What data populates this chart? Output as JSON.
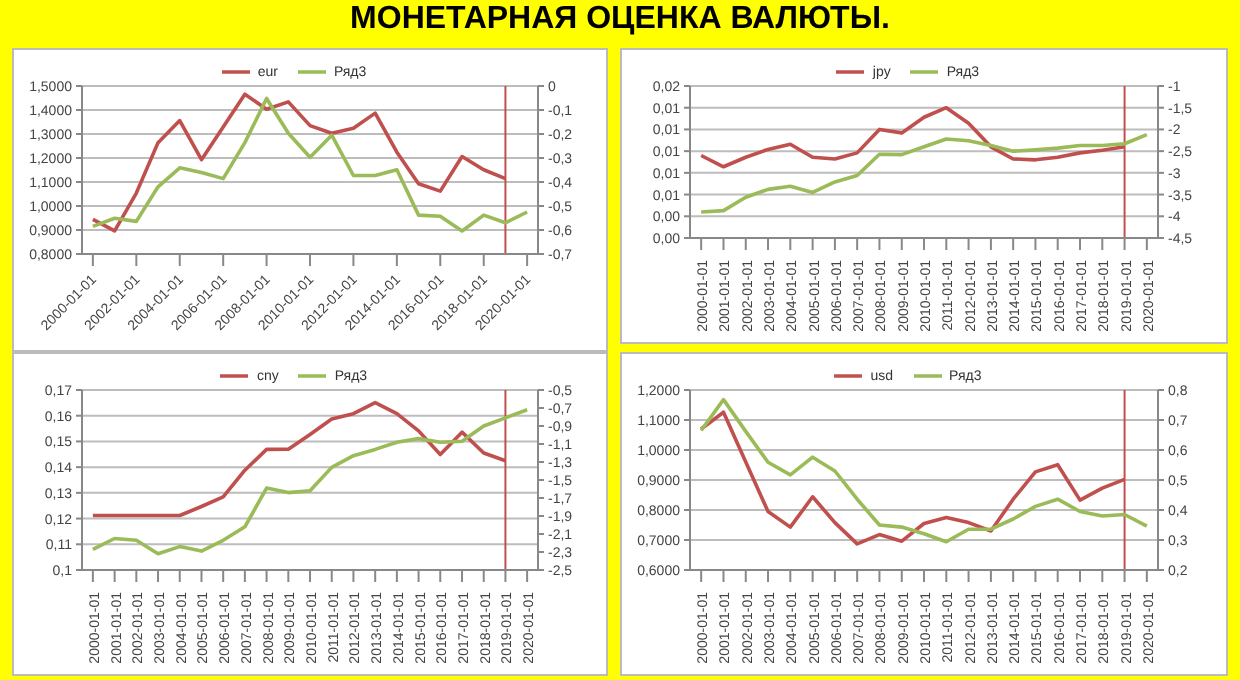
{
  "chart_data": [
    {
      "type": "line",
      "title": "МОНЕТАРНАЯ ОЦЕНКА ВАЛЮТЫ.",
      "x": [
        "2000-01-01",
        "2001-01-01",
        "2002-01-01",
        "2003-01-01",
        "2004-01-01",
        "2005-01-01",
        "2006-01-01",
        "2007-01-01",
        "2008-01-01",
        "2009-01-01",
        "2010-01-01",
        "2011-01-01",
        "2012-01-01",
        "2013-01-01",
        "2014-01-01",
        "2015-01-01",
        "2016-01-01",
        "2017-01-01",
        "2018-01-01",
        "2019-01-01",
        "2020-01-01"
      ],
      "series": [
        {
          "name": "eur",
          "color": "#c0504d",
          "values": [
            0.944,
            0.896,
            1.054,
            1.264,
            1.356,
            1.193,
            1.329,
            1.466,
            1.403,
            1.434,
            1.335,
            1.303,
            1.324,
            1.387,
            1.224,
            1.093,
            1.062,
            1.206,
            1.151,
            1.114,
            null
          ]
        },
        {
          "name": "Ряд3",
          "color": "#9bbb59",
          "axis": "y2",
          "values": [
            -0.585,
            -0.551,
            -0.564,
            -0.42,
            -0.341,
            -0.36,
            -0.386,
            -0.236,
            -0.052,
            -0.197,
            -0.297,
            -0.205,
            -0.373,
            -0.373,
            -0.349,
            -0.538,
            -0.543,
            -0.604,
            -0.538,
            -0.57,
            -0.525
          ]
        }
      ],
      "xlim": [
        "1999-07-02",
        "2020-07-02"
      ],
      "xticks": [
        "2000-01-01",
        "2002-01-01",
        "2004-01-01",
        "2006-01-01",
        "2008-01-01",
        "2010-01-01",
        "2012-01-01",
        "2014-01-01",
        "2016-01-01",
        "2018-01-01",
        "2020-01-01"
      ],
      "ylim": [
        0.8,
        1.5
      ],
      "yticks": [
        {
          "value": 0.8,
          "label": "0,8000"
        },
        {
          "value": 0.9,
          "label": "0,9000"
        },
        {
          "value": 1.0,
          "label": "1,0000"
        },
        {
          "value": 1.1,
          "label": "1,1000"
        },
        {
          "value": 1.2,
          "label": "1,2000"
        },
        {
          "value": 1.3,
          "label": "1,3000"
        },
        {
          "value": 1.4,
          "label": "1,4000"
        },
        {
          "value": 1.5,
          "label": "1,5000"
        }
      ],
      "y2lim": [
        -0.7,
        0
      ],
      "y2ticks": [
        {
          "value": -0.7,
          "label": "-0,7"
        },
        {
          "value": -0.6,
          "label": "-0,6"
        },
        {
          "value": -0.5,
          "label": "-0,5"
        },
        {
          "value": -0.4,
          "label": "-0,4"
        },
        {
          "value": -0.3,
          "label": "-0,3"
        },
        {
          "value": -0.2,
          "label": "-0,2"
        },
        {
          "value": -0.1,
          "label": "-0,1"
        },
        0
      ],
      "ref_lines": [
        {
          "axis": "x",
          "value": "2019-01-01",
          "color": "#c0504d"
        }
      ],
      "grid": "y",
      "legend": "top"
    },
    {
      "type": "line",
      "x": [
        "2000-01-01",
        "2001-01-01",
        "2002-01-01",
        "2003-01-01",
        "2004-01-01",
        "2005-01-01",
        "2006-01-01",
        "2007-01-01",
        "2008-01-01",
        "2009-01-01",
        "2010-01-01",
        "2011-01-01",
        "2012-01-01",
        "2013-01-01",
        "2014-01-01",
        "2015-01-01",
        "2016-01-01",
        "2017-01-01",
        "2018-01-01",
        "2019-01-01",
        "2020-01-01"
      ],
      "series": [
        {
          "name": "jpy",
          "color": "#c0504d",
          "values": [
            0.0095,
            0.0082,
            0.0093,
            0.0102,
            0.0108,
            0.0093,
            0.0091,
            0.0098,
            0.0125,
            0.0121,
            0.0139,
            0.015,
            0.0132,
            0.0105,
            0.0091,
            0.009,
            0.0093,
            0.0098,
            0.0101,
            0.0105,
            null
          ]
        },
        {
          "name": "Ряд3",
          "color": "#9bbb59",
          "axis": "y2",
          "values": [
            -3.9,
            -3.87,
            -3.56,
            -3.38,
            -3.31,
            -3.45,
            -3.21,
            -3.06,
            -2.57,
            -2.58,
            -2.4,
            -2.22,
            -2.26,
            -2.37,
            -2.5,
            -2.47,
            -2.43,
            -2.37,
            -2.37,
            -2.33,
            -2.12
          ]
        }
      ],
      "xlim": [
        "1999-07-02",
        "2020-07-02"
      ],
      "xticks": [
        "2000-01-01",
        "2001-01-01",
        "2002-01-01",
        "2003-01-01",
        "2004-01-01",
        "2005-01-01",
        "2006-01-01",
        "2007-01-01",
        "2008-01-01",
        "2009-01-01",
        "2010-01-01",
        "2011-01-01",
        "2012-01-01",
        "2013-01-01",
        "2014-01-01",
        "2015-01-01",
        "2016-01-01",
        "2017-01-01",
        "2018-01-01",
        "2019-01-01",
        "2020-01-01"
      ],
      "ylim": [
        0,
        0.0175
      ],
      "yticks": [
        {
          "value": 0,
          "label": "0,00"
        },
        {
          "value": 0.0025,
          "label": "0,00"
        },
        {
          "value": 0.005,
          "label": "0,01"
        },
        {
          "value": 0.0075,
          "label": "0,01"
        },
        {
          "value": 0.01,
          "label": "0,01"
        },
        {
          "value": 0.0125,
          "label": "0,01"
        },
        {
          "value": 0.015,
          "label": "0,01"
        },
        {
          "value": 0.0175,
          "label": "0,02"
        }
      ],
      "y2lim": [
        -4.5,
        -1
      ],
      "y2ticks": [
        {
          "value": -4.5,
          "label": "-4,5"
        },
        -4,
        {
          "value": -3.5,
          "label": "-3,5"
        },
        -3,
        {
          "value": -2.5,
          "label": "-2,5"
        },
        -2,
        {
          "value": -1.5,
          "label": "-1,5"
        },
        -1
      ],
      "ref_lines": [
        {
          "axis": "x",
          "value": "2019-01-01",
          "color": "#c0504d"
        }
      ],
      "grid": "y",
      "legend": "top"
    },
    {
      "type": "line",
      "x": [
        "2000-01-01",
        "2001-01-01",
        "2002-01-01",
        "2003-01-01",
        "2004-01-01",
        "2005-01-01",
        "2006-01-01",
        "2007-01-01",
        "2008-01-01",
        "2009-01-01",
        "2010-01-01",
        "2011-01-01",
        "2012-01-01",
        "2013-01-01",
        "2014-01-01",
        "2015-01-01",
        "2016-01-01",
        "2017-01-01",
        "2018-01-01",
        "2019-01-01",
        "2020-01-01"
      ],
      "series": [
        {
          "name": "cny",
          "color": "#c0504d",
          "values": [
            0.1212,
            0.1212,
            0.1212,
            0.1212,
            0.1212,
            0.1247,
            0.1284,
            0.1388,
            0.1469,
            0.147,
            0.1527,
            0.1587,
            0.1608,
            0.1651,
            0.1608,
            0.1541,
            0.1449,
            0.1536,
            0.1455,
            0.1425,
            null
          ]
        },
        {
          "name": "Ряд3",
          "color": "#9bbb59",
          "axis": "y2",
          "values": [
            -2.27,
            -2.15,
            -2.17,
            -2.32,
            -2.24,
            -2.29,
            -2.17,
            -2.02,
            -1.59,
            -1.64,
            -1.62,
            -1.36,
            -1.23,
            -1.16,
            -1.08,
            -1.04,
            -1.08,
            -1.07,
            -0.9,
            -0.81,
            -0.72
          ]
        }
      ],
      "xlim": [
        "1999-07-02",
        "2020-07-02"
      ],
      "xticks": [
        "2000-01-01",
        "2001-01-01",
        "2002-01-01",
        "2003-01-01",
        "2004-01-01",
        "2005-01-01",
        "2006-01-01",
        "2007-01-01",
        "2008-01-01",
        "2009-01-01",
        "2010-01-01",
        "2011-01-01",
        "2012-01-01",
        "2013-01-01",
        "2014-01-01",
        "2015-01-01",
        "2016-01-01",
        "2017-01-01",
        "2018-01-01",
        "2019-01-01",
        "2020-01-01"
      ],
      "ylim": [
        0.1,
        0.17
      ],
      "yticks": [
        {
          "value": 0.1,
          "label": "0,1"
        },
        {
          "value": 0.11,
          "label": "0,11"
        },
        {
          "value": 0.12,
          "label": "0,12"
        },
        {
          "value": 0.13,
          "label": "0,13"
        },
        {
          "value": 0.14,
          "label": "0,14"
        },
        {
          "value": 0.15,
          "label": "0,15"
        },
        {
          "value": 0.16,
          "label": "0,16"
        },
        {
          "value": 0.17,
          "label": "0,17"
        }
      ],
      "y2lim": [
        -2.5,
        -0.5
      ],
      "y2ticks": [
        {
          "value": -2.5,
          "label": "-2,5"
        },
        {
          "value": -2.3,
          "label": "-2,3"
        },
        {
          "value": -2.1,
          "label": "-2,1"
        },
        {
          "value": -1.9,
          "label": "-1,9"
        },
        {
          "value": -1.7,
          "label": "-1,7"
        },
        {
          "value": -1.5,
          "label": "-1,5"
        },
        {
          "value": -1.3,
          "label": "-1,3"
        },
        {
          "value": -1.1,
          "label": "-1,1"
        },
        {
          "value": -0.9,
          "label": "-0,9"
        },
        {
          "value": -0.7,
          "label": "-0,7"
        },
        {
          "value": -0.5,
          "label": "-0,5"
        }
      ],
      "ref_lines": [
        {
          "axis": "x",
          "value": "2019-01-01",
          "color": "#c0504d"
        }
      ],
      "grid": "y",
      "legend": "top"
    },
    {
      "type": "line",
      "x": [
        "2000-01-01",
        "2001-01-01",
        "2002-01-01",
        "2003-01-01",
        "2004-01-01",
        "2005-01-01",
        "2006-01-01",
        "2007-01-01",
        "2008-01-01",
        "2009-01-01",
        "2010-01-01",
        "2011-01-01",
        "2012-01-01",
        "2013-01-01",
        "2014-01-01",
        "2015-01-01",
        "2016-01-01",
        "2017-01-01",
        "2018-01-01",
        "2019-01-01",
        "2020-01-01"
      ],
      "series": [
        {
          "name": "usd",
          "color": "#c0504d",
          "values": [
            1.07,
            1.126,
            0.96,
            0.795,
            0.743,
            0.844,
            0.758,
            0.687,
            0.718,
            0.696,
            0.755,
            0.775,
            0.758,
            0.73,
            0.836,
            0.927,
            0.951,
            0.833,
            0.873,
            0.902,
            null
          ]
        },
        {
          "name": "Ряд3",
          "color": "#9bbb59",
          "axis": "y2",
          "values": [
            0.665,
            0.768,
            0.662,
            0.559,
            0.517,
            0.576,
            0.53,
            0.436,
            0.35,
            0.343,
            0.321,
            0.294,
            0.336,
            0.336,
            0.37,
            0.412,
            0.436,
            0.395,
            0.38,
            0.385,
            0.346
          ]
        }
      ],
      "xlim": [
        "1999-07-02",
        "2020-07-02"
      ],
      "xticks": [
        "2000-01-01",
        "2001-01-01",
        "2002-01-01",
        "2003-01-01",
        "2004-01-01",
        "2005-01-01",
        "2006-01-01",
        "2007-01-01",
        "2008-01-01",
        "2009-01-01",
        "2010-01-01",
        "2011-01-01",
        "2012-01-01",
        "2013-01-01",
        "2014-01-01",
        "2015-01-01",
        "2016-01-01",
        "2017-01-01",
        "2018-01-01",
        "2019-01-01",
        "2020-01-01"
      ],
      "ylim": [
        0.6,
        1.2
      ],
      "yticks": [
        {
          "value": 0.6,
          "label": "0,6000"
        },
        {
          "value": 0.7,
          "label": "0,7000"
        },
        {
          "value": 0.8,
          "label": "0,8000"
        },
        {
          "value": 0.9,
          "label": "0,9000"
        },
        {
          "value": 1.0,
          "label": "1,0000"
        },
        {
          "value": 1.1,
          "label": "1,1000"
        },
        {
          "value": 1.2,
          "label": "1,2000"
        }
      ],
      "y2lim": [
        0.2,
        0.8
      ],
      "y2ticks": [
        {
          "value": 0.2,
          "label": "0,2"
        },
        {
          "value": 0.3,
          "label": "0,3"
        },
        {
          "value": 0.4,
          "label": "0,4"
        },
        {
          "value": 0.5,
          "label": "0,5"
        },
        {
          "value": 0.6,
          "label": "0,6"
        },
        {
          "value": 0.7,
          "label": "0,7"
        },
        {
          "value": 0.8,
          "label": "0,8"
        }
      ],
      "ref_lines": [
        {
          "axis": "x",
          "value": "2019-01-01",
          "color": "#c0504d"
        }
      ],
      "grid": "y",
      "legend": "top"
    }
  ]
}
